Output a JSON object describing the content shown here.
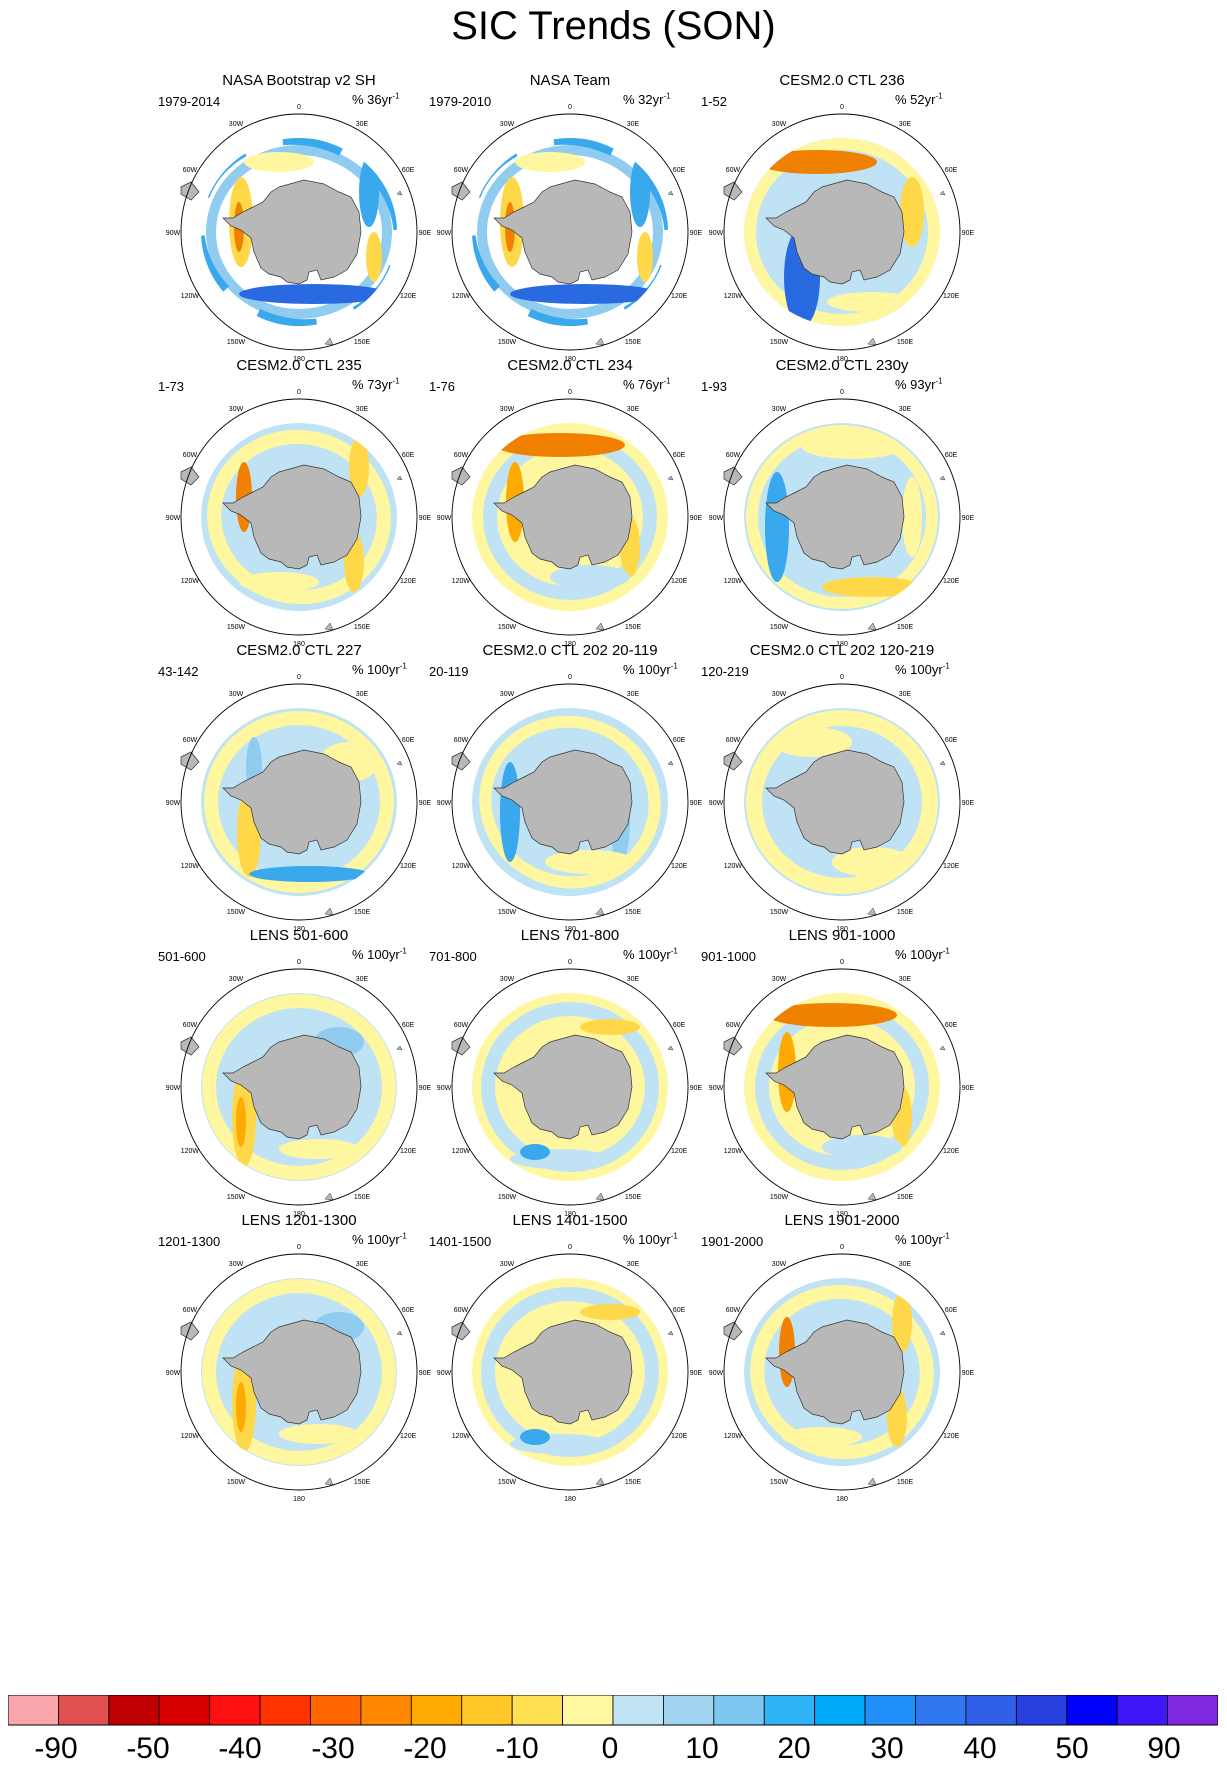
{
  "title": "SIC Trends (SON)",
  "map_labels": {
    "lon": [
      "0",
      "30E",
      "60E",
      "90E",
      "120E",
      "150E",
      "180",
      "150W",
      "120W",
      "90W",
      "60W",
      "30W"
    ]
  },
  "panels": [
    {
      "title": "NASA Bootstrap v2 SH",
      "period": "1979-2014",
      "rate": "% 36yr",
      "rate_exp": "-1",
      "pattern": 0
    },
    {
      "title": "NASA Team",
      "period": "1979-2010",
      "rate": "% 32yr",
      "rate_exp": "-1",
      "pattern": 0
    },
    {
      "title": "CESM2.0 CTL 236",
      "period": "1-52",
      "rate": "% 52yr",
      "rate_exp": "-1",
      "pattern": 1
    },
    {
      "title": "CESM2.0 CTL 235",
      "period": "1-73",
      "rate": "% 73yr",
      "rate_exp": "-1",
      "pattern": 2
    },
    {
      "title": "CESM2.0 CTL 234",
      "period": "1-76",
      "rate": "% 76yr",
      "rate_exp": "-1",
      "pattern": 3
    },
    {
      "title": "CESM2.0 CTL 230y",
      "period": "1-93",
      "rate": "% 93yr",
      "rate_exp": "-1",
      "pattern": 4
    },
    {
      "title": "CESM2.0 CTL 227",
      "period": "43-142",
      "rate": "% 100yr",
      "rate_exp": "-1",
      "pattern": 5
    },
    {
      "title": "CESM2.0 CTL 202 20-119",
      "period": "20-119",
      "rate": "% 100yr",
      "rate_exp": "-1",
      "pattern": 6
    },
    {
      "title": "CESM2.0 CTL 202 120-219",
      "period": "120-219",
      "rate": "% 100yr",
      "rate_exp": "-1",
      "pattern": 7
    },
    {
      "title": "LENS 501-600",
      "period": "501-600",
      "rate": "% 100yr",
      "rate_exp": "-1",
      "pattern": 8
    },
    {
      "title": "LENS 701-800",
      "period": "701-800",
      "rate": "% 100yr",
      "rate_exp": "-1",
      "pattern": 9
    },
    {
      "title": "LENS 901-1000",
      "period": "901-1000",
      "rate": "% 100yr",
      "rate_exp": "-1",
      "pattern": 3
    },
    {
      "title": "LENS 1201-1300",
      "period": "1201-1300",
      "rate": "% 100yr",
      "rate_exp": "-1",
      "pattern": 8
    },
    {
      "title": "LENS 1401-1500",
      "period": "1401-1500",
      "rate": "% 100yr",
      "rate_exp": "-1",
      "pattern": 9
    },
    {
      "title": "LENS 1901-2000",
      "period": "1901-2000",
      "rate": "% 100yr",
      "rate_exp": "-1",
      "pattern": 2
    }
  ],
  "colorbar": {
    "colors": [
      "#f8a8ac",
      "#e05050",
      "#c00000",
      "#d80000",
      "#ff1010",
      "#ff3300",
      "#ff6600",
      "#ff8800",
      "#ffaa00",
      "#ffc828",
      "#ffe050",
      "#fff8a0",
      "#c0e4f4",
      "#a0d4f0",
      "#7cc8f0",
      "#30b4f8",
      "#00a8f8",
      "#2090f8",
      "#3078f0",
      "#3060e8",
      "#2840e0",
      "#0000ff",
      "#4018f8",
      "#8028e0"
    ],
    "labels": [
      "-90",
      "-50",
      "-40",
      "-30",
      "-20",
      "-10",
      "0",
      "10",
      "20",
      "30",
      "40",
      "50",
      "90"
    ]
  }
}
